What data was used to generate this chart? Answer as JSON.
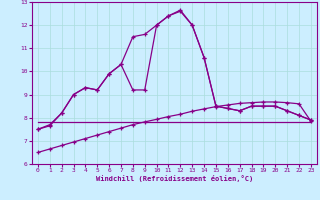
{
  "xlabel": "Windchill (Refroidissement éolien,°C)",
  "xlim": [
    -0.5,
    23.5
  ],
  "ylim": [
    6,
    13
  ],
  "xticks": [
    0,
    1,
    2,
    3,
    4,
    5,
    6,
    7,
    8,
    9,
    10,
    11,
    12,
    13,
    14,
    15,
    16,
    17,
    18,
    19,
    20,
    21,
    22,
    23
  ],
  "yticks": [
    6,
    7,
    8,
    9,
    10,
    11,
    12,
    13
  ],
  "bg_color": "#cceeff",
  "line_color": "#880088",
  "grid_color": "#aadddd",
  "curveA_x": [
    0,
    1,
    2,
    3,
    4,
    5,
    6,
    7,
    8,
    9,
    10,
    11,
    12,
    13,
    14,
    15,
    16,
    17,
    18,
    19,
    20,
    21,
    22,
    23
  ],
  "curveA_y": [
    7.8,
    7.8,
    7.8,
    7.8,
    7.8,
    7.8,
    7.8,
    7.8,
    7.8,
    7.8,
    7.8,
    7.8,
    7.8,
    7.8,
    7.8,
    7.8,
    7.8,
    7.8,
    7.8,
    7.8,
    7.8,
    7.8,
    7.8,
    7.8
  ],
  "curveB_x": [
    0,
    1,
    2,
    3,
    4,
    5,
    6,
    7,
    8,
    9,
    10,
    11,
    12,
    13,
    14,
    15,
    16,
    17,
    18,
    19,
    20,
    21,
    22,
    23
  ],
  "curveB_y": [
    6.5,
    6.65,
    6.8,
    6.95,
    7.1,
    7.25,
    7.4,
    7.55,
    7.7,
    7.82,
    7.93,
    8.05,
    8.15,
    8.28,
    8.38,
    8.48,
    8.55,
    8.62,
    8.65,
    8.68,
    8.68,
    8.65,
    8.6,
    7.85
  ],
  "curveC_x": [
    0,
    1,
    2,
    3,
    4,
    5,
    6,
    7,
    8,
    9,
    10,
    11,
    12,
    13,
    14,
    15,
    16,
    17,
    18,
    19,
    20,
    21,
    22,
    23
  ],
  "curveC_y": [
    7.5,
    7.65,
    8.2,
    9.0,
    9.3,
    9.2,
    9.9,
    10.3,
    9.2,
    9.2,
    12.0,
    12.4,
    12.6,
    12.0,
    10.6,
    8.5,
    8.4,
    8.3,
    8.5,
    8.5,
    8.5,
    8.3,
    8.1,
    7.9
  ],
  "curveD_x": [
    0,
    1,
    2,
    3,
    4,
    5,
    6,
    7,
    8,
    9,
    10,
    11,
    12,
    13,
    14,
    15,
    16,
    17,
    18,
    19,
    20,
    21,
    22,
    23
  ],
  "curveD_y": [
    7.5,
    7.7,
    8.2,
    9.0,
    9.3,
    9.2,
    9.9,
    10.3,
    11.5,
    11.6,
    12.0,
    12.4,
    12.65,
    12.0,
    10.6,
    8.5,
    8.4,
    8.3,
    8.5,
    8.5,
    8.5,
    8.3,
    8.1,
    7.9
  ]
}
